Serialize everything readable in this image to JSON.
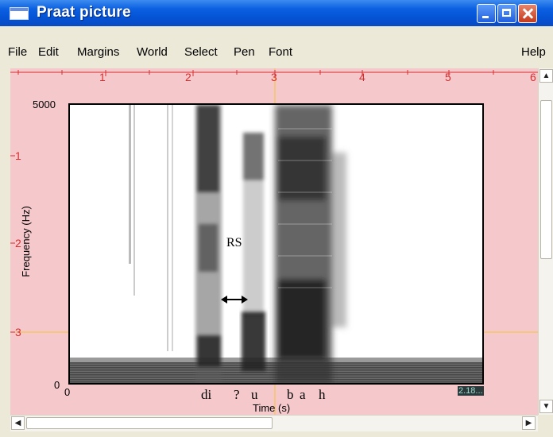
{
  "window": {
    "title": "Praat picture"
  },
  "menu": {
    "items": [
      "File",
      "Edit",
      "Margins",
      "World",
      "Select",
      "Pen",
      "Font"
    ],
    "help": "Help"
  },
  "ruler": {
    "top": [
      "1",
      "2",
      "3",
      "4",
      "5",
      "6"
    ],
    "left": [
      "1",
      "2",
      "3"
    ]
  },
  "spectrogram": {
    "y_top_label": "5000",
    "y_bottom_label": "0",
    "x_left_label": "0",
    "x_right_label": "2.18...",
    "ylabel": "Frequency (Hz)",
    "xlabel": "Time (s)",
    "annotation_rs": "RS",
    "segments": [
      "di",
      "?",
      "u",
      "b",
      "a",
      "h"
    ]
  },
  "colors": {
    "canvas": "#f5c8cc",
    "ruler": "#d43030",
    "title_bar": "#0552d4"
  }
}
